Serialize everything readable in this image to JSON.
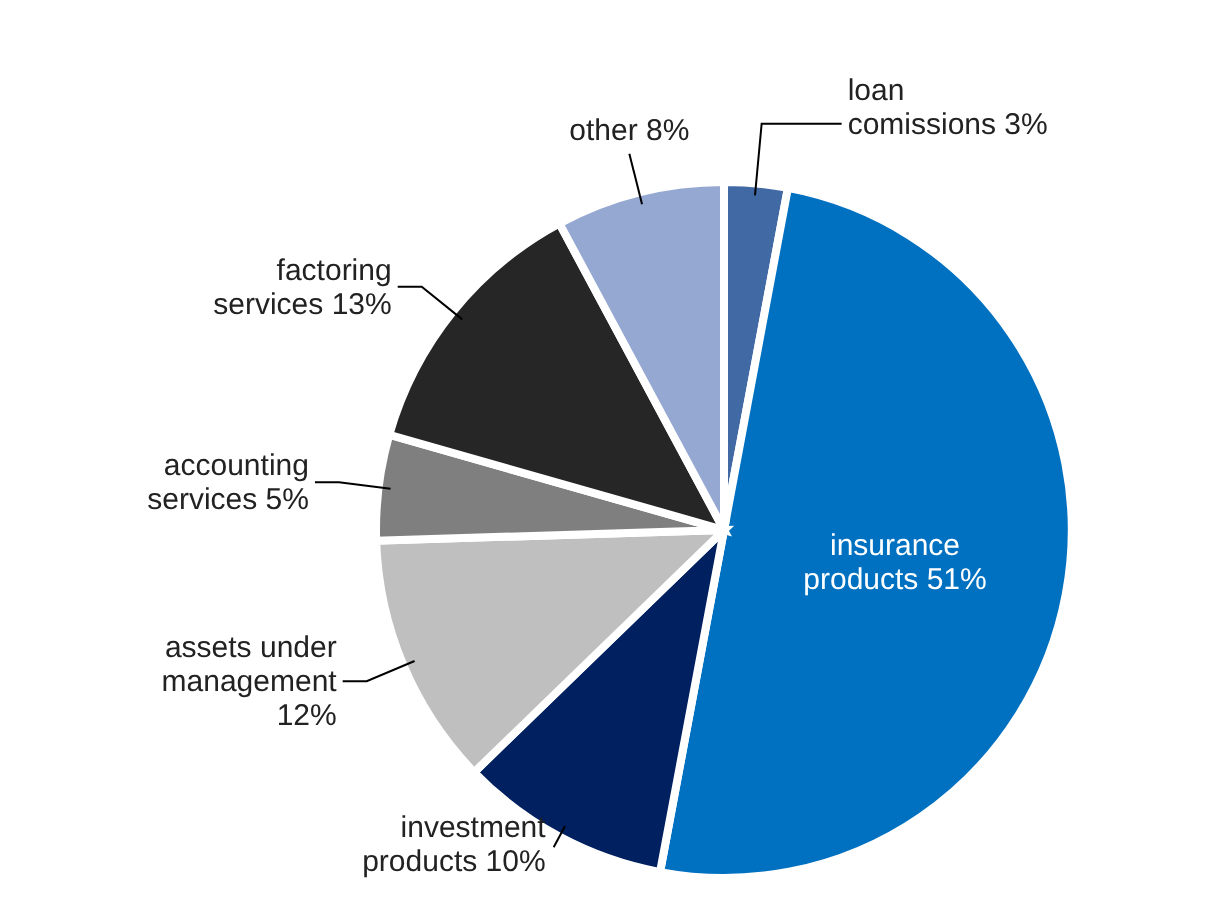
{
  "chart_data": {
    "type": "pie",
    "categories": [
      "loan comissions",
      "insurance products",
      "investment products",
      "assets under management",
      "accounting services",
      "factoring services",
      "other"
    ],
    "values": [
      3,
      51,
      10,
      12,
      5,
      13,
      8
    ],
    "value_labels": [
      "3%",
      "51%",
      "10%",
      "12%",
      "5%",
      "13%",
      "8%"
    ],
    "colors": [
      "#4169a4",
      "#0070c0",
      "#002060",
      "#bfbfbf",
      "#7f7f7f",
      "#262626",
      "#95a8d2"
    ]
  }
}
